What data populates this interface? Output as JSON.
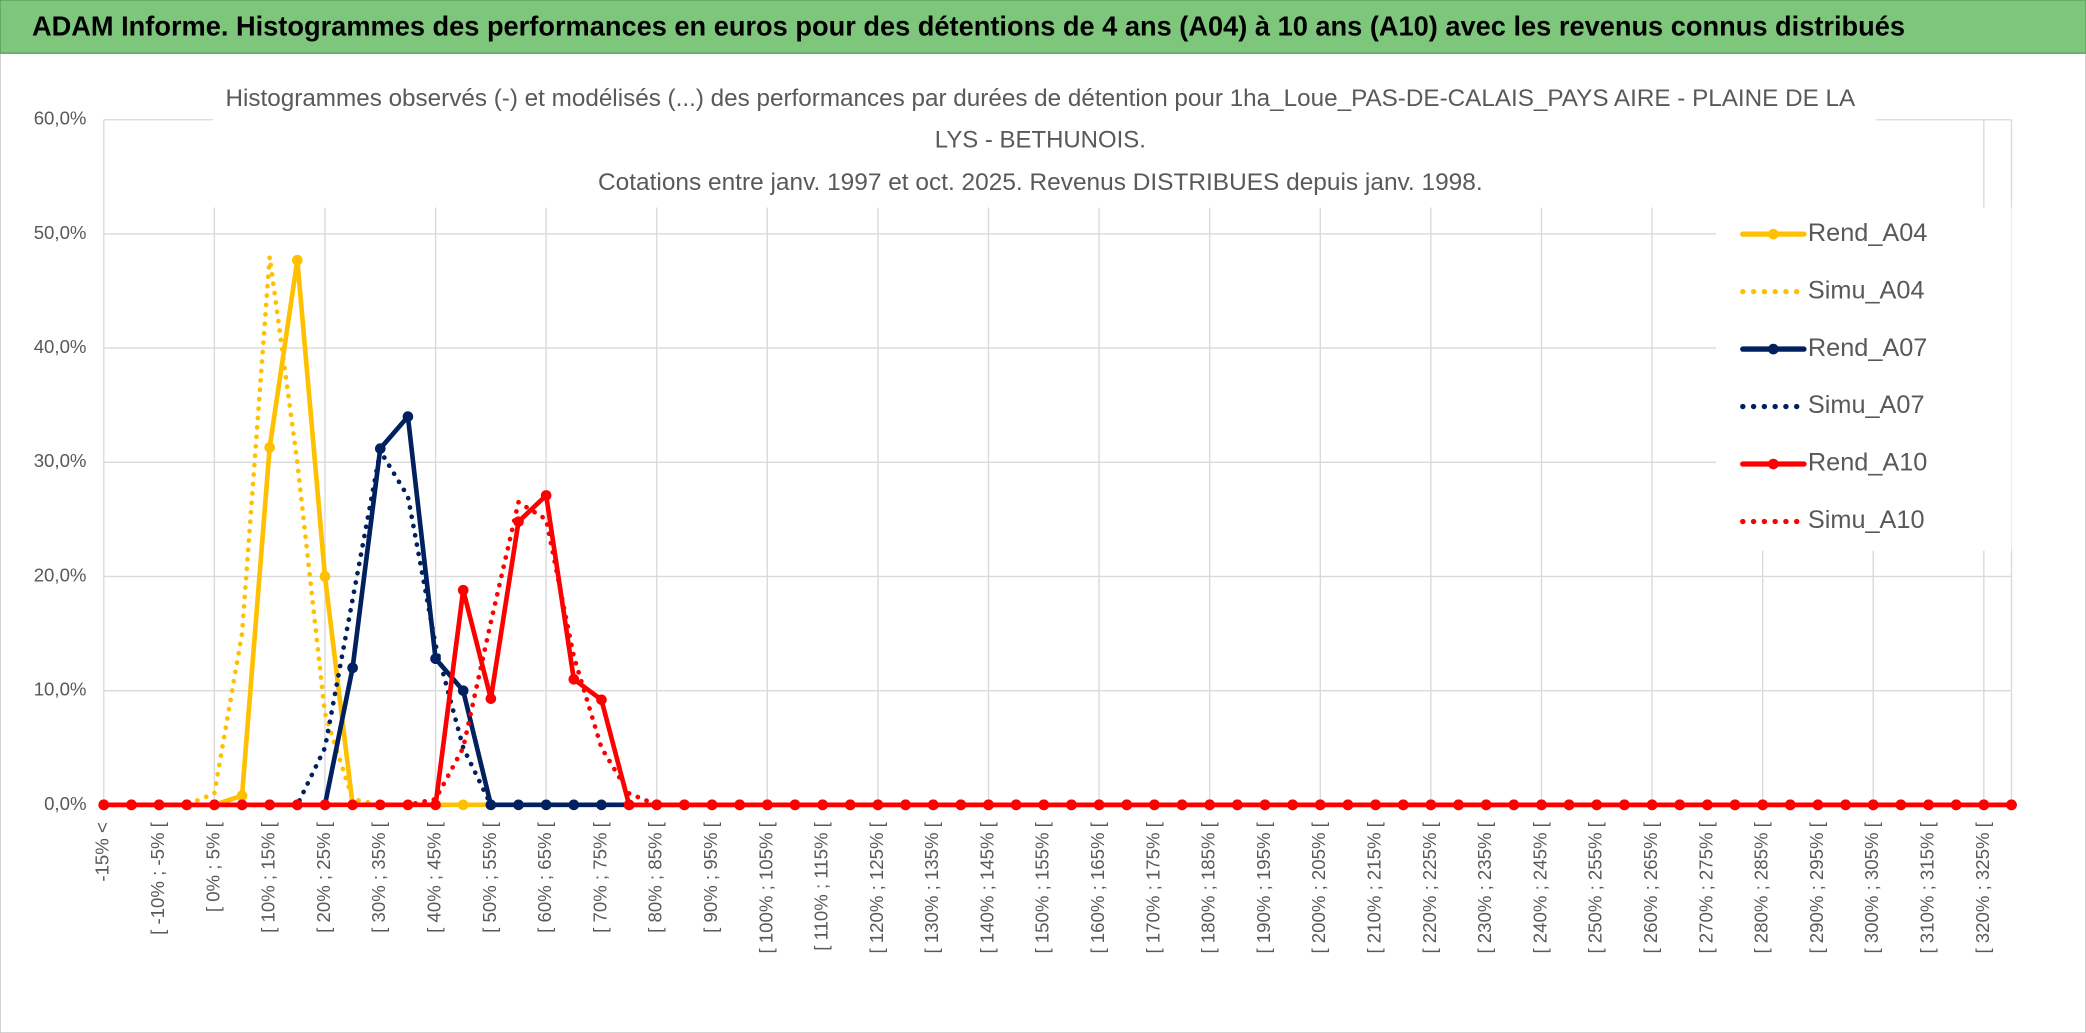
{
  "header": {
    "title": "ADAM Informe. Histogrammes des performances en euros pour des détentions de 4 ans (A04) à 10 ans (A10) avec les revenus connus distribués"
  },
  "chart_data": {
    "type": "line",
    "title": [
      "Histogrammes observés (-) et modélisés (...) des performances par durées de détention pour 1ha_Loue_PAS-DE-CALAIS_PAYS AIRE - PLAINE DE LA",
      "LYS - BETHUNOIS.",
      "Cotations entre janv. 1997 et oct. 2025. Revenus DISTRIBUES depuis janv. 1998."
    ],
    "categories": [
      "-15% <",
      null,
      "[ -10% ; -5% [",
      null,
      "[ 0% ; 5% [",
      null,
      "[ 10% ; 15% [",
      null,
      "[ 20% ; 25% [",
      null,
      "[ 30% ; 35% [",
      null,
      "[ 40% ; 45% [",
      null,
      "[ 50% ; 55% [",
      null,
      "[ 60% ; 65% [",
      null,
      "[ 70% ; 75% [",
      null,
      "[ 80% ; 85% [",
      null,
      "[ 90% ; 95% [",
      null,
      "[ 100% ; 105% [",
      null,
      "[ 110% ; 115% [",
      null,
      "[ 120% ; 125% [",
      null,
      "[ 130% ; 135% [",
      null,
      "[ 140% ; 145% [",
      null,
      "[ 150% ; 155% [",
      null,
      "[ 160% ; 165% [",
      null,
      "[ 170% ; 175% [",
      null,
      "[ 180% ; 185% [",
      null,
      "[ 190% ; 195% [",
      null,
      "[ 200% ; 205% [",
      null,
      "[ 210% ; 215% [",
      null,
      "[ 220% ; 225% [",
      null,
      "[ 230% ; 235% [",
      null,
      "[ 240% ; 245% [",
      null,
      "[ 250% ; 255% [",
      null,
      "[ 260% ; 265% [",
      null,
      "[ 270% ; 275% [",
      null,
      "[ 280% ; 285% [",
      null,
      "[ 290% ; 295% [",
      null,
      "[ 300% ; 305% [",
      null,
      "[ 310% ; 315% [",
      null,
      "[ 320% ; 325% [",
      null
    ],
    "series": [
      {
        "name": "Rend_A04",
        "color": "#ffc000",
        "dash": "solid",
        "marker": "circle",
        "values": [
          0,
          0,
          0,
          0,
          0,
          0.8,
          31.3,
          47.7,
          20,
          0,
          0,
          0,
          0,
          0,
          0,
          0,
          0,
          0,
          0,
          0,
          0,
          0,
          0,
          0,
          0,
          0,
          0,
          0,
          0,
          0,
          0,
          0,
          0,
          0,
          0,
          0,
          0,
          0,
          0,
          0,
          0,
          0,
          0,
          0,
          0,
          0,
          0,
          0,
          0,
          0,
          0,
          0,
          0,
          0,
          0,
          0,
          0,
          0,
          0,
          0,
          0,
          0,
          0,
          0,
          0,
          0,
          0,
          0,
          0,
          0
        ]
      },
      {
        "name": "Simu_A04",
        "color": "#ffc000",
        "dash": "dotted",
        "marker": "none",
        "values": [
          0,
          0,
          0,
          0,
          1,
          15,
          48,
          30,
          8,
          0.5,
          0,
          0,
          0,
          0,
          0,
          0,
          0,
          0,
          0,
          0,
          0,
          0,
          0,
          0,
          0,
          0,
          0,
          0,
          0,
          0,
          0,
          0,
          0,
          0,
          0,
          0,
          0,
          0,
          0,
          0,
          0,
          0,
          0,
          0,
          0,
          0,
          0,
          0,
          0,
          0,
          0,
          0,
          0,
          0,
          0,
          0,
          0,
          0,
          0,
          0,
          0,
          0,
          0,
          0,
          0,
          0,
          0,
          0,
          0,
          0
        ]
      },
      {
        "name": "Rend_A07",
        "color": "#002060",
        "dash": "solid",
        "marker": "circle",
        "values": [
          0,
          0,
          0,
          0,
          0,
          0,
          0,
          0,
          0,
          12,
          31.2,
          34,
          12.8,
          10,
          0,
          0,
          0,
          0,
          0,
          0,
          0,
          0,
          0,
          0,
          0,
          0,
          0,
          0,
          0,
          0,
          0,
          0,
          0,
          0,
          0,
          0,
          0,
          0,
          0,
          0,
          0,
          0,
          0,
          0,
          0,
          0,
          0,
          0,
          0,
          0,
          0,
          0,
          0,
          0,
          0,
          0,
          0,
          0,
          0,
          0,
          0,
          0,
          0,
          0,
          0,
          0,
          0,
          0,
          0,
          0
        ]
      },
      {
        "name": "Simu_A07",
        "color": "#002060",
        "dash": "dotted",
        "marker": "none",
        "values": [
          0,
          0,
          0,
          0,
          0,
          0,
          0,
          0,
          5,
          18,
          31,
          27,
          14,
          5,
          0,
          0,
          0,
          0,
          0,
          0,
          0,
          0,
          0,
          0,
          0,
          0,
          0,
          0,
          0,
          0,
          0,
          0,
          0,
          0,
          0,
          0,
          0,
          0,
          0,
          0,
          0,
          0,
          0,
          0,
          0,
          0,
          0,
          0,
          0,
          0,
          0,
          0,
          0,
          0,
          0,
          0,
          0,
          0,
          0,
          0,
          0,
          0,
          0,
          0,
          0,
          0,
          0,
          0,
          0,
          0
        ]
      },
      {
        "name": "Rend_A10",
        "color": "#ff0000",
        "dash": "solid",
        "marker": "circle",
        "values": [
          0,
          0,
          0,
          0,
          0,
          0,
          0,
          0,
          0,
          0,
          0,
          0,
          0,
          18.8,
          9.3,
          24.8,
          27.1,
          11,
          9.2,
          0,
          0,
          0,
          0,
          0,
          0,
          0,
          0,
          0,
          0,
          0,
          0,
          0,
          0,
          0,
          0,
          0,
          0,
          0,
          0,
          0,
          0,
          0,
          0,
          0,
          0,
          0,
          0,
          0,
          0,
          0,
          0,
          0,
          0,
          0,
          0,
          0,
          0,
          0,
          0,
          0,
          0,
          0,
          0,
          0,
          0,
          0,
          0,
          0,
          0,
          0
        ]
      },
      {
        "name": "Simu_A10",
        "color": "#ff0000",
        "dash": "dotted",
        "marker": "none",
        "values": [
          0,
          0,
          0,
          0,
          0,
          0,
          0,
          0,
          0,
          0,
          0,
          0,
          0.5,
          5,
          16,
          26.5,
          25,
          13,
          5,
          1,
          0,
          0,
          0,
          0,
          0,
          0,
          0,
          0,
          0,
          0,
          0,
          0,
          0,
          0,
          0,
          0,
          0,
          0,
          0,
          0,
          0,
          0,
          0,
          0,
          0,
          0,
          0,
          0,
          0,
          0,
          0,
          0,
          0,
          0,
          0,
          0,
          0,
          0,
          0,
          0,
          0,
          0,
          0,
          0,
          0,
          0,
          0,
          0,
          0,
          0
        ]
      }
    ],
    "ylim": [
      0,
      60
    ],
    "yticks": [
      {
        "value": 0,
        "label": "0,0%"
      },
      {
        "value": 10,
        "label": "10,0%"
      },
      {
        "value": 20,
        "label": "20,0%"
      },
      {
        "value": 30,
        "label": "30,0%"
      },
      {
        "value": 40,
        "label": "40,0%"
      },
      {
        "value": 50,
        "label": "50,0%"
      },
      {
        "value": 60,
        "label": "60,0%"
      }
    ],
    "grid": true,
    "legend": "right"
  }
}
